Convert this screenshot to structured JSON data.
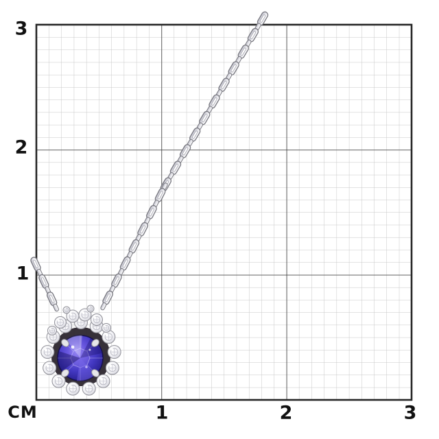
{
  "figure": {
    "unit_label": "СМ",
    "x_axis_labels": [
      "1",
      "2",
      "3"
    ],
    "y_axis_labels": [
      "3",
      "2",
      "1"
    ],
    "grid": {
      "unit": "cm",
      "cm_span": 3,
      "cells_per_cm": 10
    },
    "subject": {
      "description": "Silver cable-link chain necklace with round blue gemstone halo pendant laid on a centimeter measurement grid",
      "pendant_width_cm": 0.65,
      "pendant_height_cm": 0.65
    },
    "colors": {
      "background": "#ffffff",
      "grid_minor": "#c6c6c6",
      "grid_major": "#3a3a3a",
      "grid_border": "#262626",
      "axis_text": "#111111",
      "stone_primary": "#4338c2",
      "stone_deep": "#1b1468",
      "stone_light": "#9a8cf2",
      "metal": "#e7e7ec",
      "metal_outline": "#77777f",
      "backing_dark": "#262028"
    }
  }
}
